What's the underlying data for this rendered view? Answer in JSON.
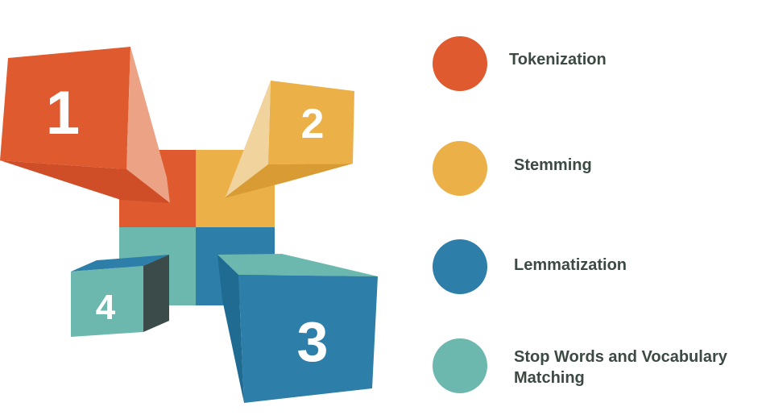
{
  "blocks": [
    {
      "number": "1",
      "color": "#df5a2f",
      "side_color": "#eca285"
    },
    {
      "number": "2",
      "color": "#ebb047",
      "side_color": "#f1d39e"
    },
    {
      "number": "3",
      "color": "#2d7ea8",
      "side_color": "#6cb8ae"
    },
    {
      "number": "4",
      "color": "#6cb8ae",
      "side_color": "#3a4b4a"
    }
  ],
  "legend": [
    {
      "label": "Tokenization",
      "color": "#df5a2f"
    },
    {
      "label": "Stemming",
      "color": "#ebb047"
    },
    {
      "label": "Lemmatization",
      "color": "#2d7ea8"
    },
    {
      "label": "Stop Words and Vocabulary Matching",
      "color": "#6cb8ae"
    }
  ]
}
